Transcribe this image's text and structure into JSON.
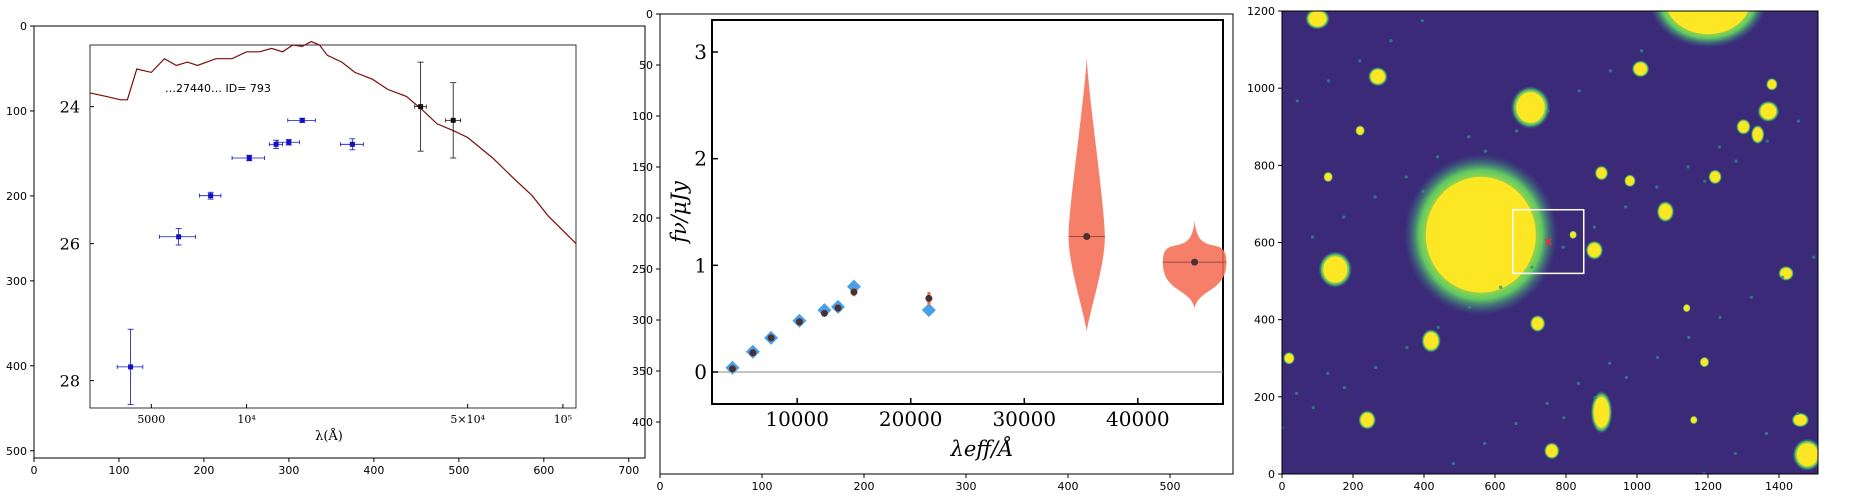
{
  "panels": [
    {
      "type": "image-axes",
      "x_ticks": [
        "0",
        "100",
        "200",
        "300",
        "400",
        "500",
        "600",
        "700"
      ],
      "y_ticks": [
        "0",
        "100",
        "200",
        "300",
        "400",
        "500"
      ],
      "inner_plot": {
        "type": "scatter",
        "xlabel": "λ(Å)",
        "x_ticks": [
          "5000",
          "10⁴",
          "5×10⁴",
          "10⁵"
        ],
        "y_ticks": [
          "24",
          "26",
          "28"
        ],
        "annotation": "…27440… ID= 793"
      }
    },
    {
      "type": "image-axes",
      "x_ticks": [
        "0",
        "100",
        "200",
        "300",
        "400",
        "500"
      ],
      "y_ticks": [
        "0",
        "50",
        "100",
        "150",
        "200",
        "250",
        "300",
        "350",
        "400"
      ],
      "inner_plot": {
        "type": "scatter",
        "xlabel": "λeff/Å",
        "ylabel": "fν/μJy",
        "x_ticks": [
          "10000",
          "20000",
          "30000",
          "40000"
        ],
        "y_ticks": [
          "0",
          "1",
          "2",
          "3"
        ]
      }
    },
    {
      "type": "image-axes",
      "x_ticks": [
        "0",
        "200",
        "400",
        "600",
        "800",
        "1000",
        "1200",
        "1400"
      ],
      "y_ticks": [
        "0",
        "200",
        "400",
        "600",
        "800",
        "1000",
        "1200"
      ]
    }
  ],
  "chart_data": [
    {
      "type": "scatter",
      "xlabel": "λ(Å)",
      "ylabel": "",
      "x_scale": "log",
      "y_inverted": true,
      "xlim": [
        3200,
        110000
      ],
      "ylim": [
        28.4,
        23.1
      ],
      "series": [
        {
          "color": "#1010c8",
          "points": [
            {
              "x": 4300,
              "y": 27.8,
              "xerr": [
                400,
                400
              ],
              "yerr": 0.55
            },
            {
              "x": 6100,
              "y": 25.9,
              "xerr": [
                800,
                800
              ],
              "yerr": 0.12
            },
            {
              "x": 7700,
              "y": 25.3,
              "xerr": [
                600,
                600
              ],
              "yerr": 0.05
            },
            {
              "x": 10200,
              "y": 24.75,
              "xerr": [
                1200,
                1200
              ],
              "yerr": 0.04
            },
            {
              "x": 12400,
              "y": 24.55,
              "xerr": [
                600,
                600
              ],
              "yerr": 0.06
            },
            {
              "x": 13600,
              "y": 24.52,
              "xerr": [
                1100,
                1100
              ],
              "yerr": 0.04
            },
            {
              "x": 15000,
              "y": 24.2,
              "xerr": [
                1500,
                1500
              ],
              "yerr": 0.03
            },
            {
              "x": 21600,
              "y": 24.55,
              "xerr": [
                1800,
                1800
              ],
              "yerr": 0.08
            }
          ]
        },
        {
          "color": "#111111",
          "points": [
            {
              "x": 35500,
              "y": 24.0,
              "xerr": [
                1500,
                1500
              ],
              "yerr": 0.65
            },
            {
              "x": 45000,
              "y": 24.2,
              "xerr": [
                2500,
                2500
              ],
              "yerr": 0.55
            }
          ]
        }
      ],
      "model": {
        "color": "#7a0c0c",
        "points": [
          [
            3200,
            23.8
          ],
          [
            3600,
            23.85
          ],
          [
            4000,
            23.9
          ],
          [
            4200,
            23.9
          ],
          [
            4500,
            23.45
          ],
          [
            5000,
            23.5
          ],
          [
            5500,
            23.3
          ],
          [
            6000,
            23.4
          ],
          [
            6500,
            23.35
          ],
          [
            7000,
            23.4
          ],
          [
            8000,
            23.3
          ],
          [
            9000,
            23.3
          ],
          [
            10000,
            23.2
          ],
          [
            11000,
            23.2
          ],
          [
            12000,
            23.15
          ],
          [
            13000,
            23.2
          ],
          [
            14000,
            23.1
          ],
          [
            15000,
            23.12
          ],
          [
            16000,
            23.05
          ],
          [
            17000,
            23.1
          ],
          [
            18000,
            23.25
          ],
          [
            20000,
            23.35
          ],
          [
            22000,
            23.5
          ],
          [
            25000,
            23.6
          ],
          [
            28000,
            23.75
          ],
          [
            32000,
            23.85
          ],
          [
            36000,
            24.05
          ],
          [
            40000,
            24.25
          ],
          [
            45000,
            24.35
          ],
          [
            50000,
            24.45
          ],
          [
            60000,
            24.75
          ],
          [
            70000,
            25.05
          ],
          [
            80000,
            25.3
          ],
          [
            90000,
            25.6
          ],
          [
            110000,
            26.0
          ]
        ]
      }
    },
    {
      "type": "scatter",
      "xlabel": "λeff/Å",
      "ylabel": "fν/μJy",
      "xlim": [
        2500,
        47500
      ],
      "ylim": [
        -0.3,
        3.3
      ],
      "series": [
        {
          "marker": "diamond",
          "color": "#4a9fe8",
          "points": [
            {
              "x": 4300,
              "y": 0.04
            },
            {
              "x": 6100,
              "y": 0.19
            },
            {
              "x": 7700,
              "y": 0.32
            },
            {
              "x": 10200,
              "y": 0.48
            },
            {
              "x": 12400,
              "y": 0.58
            },
            {
              "x": 13600,
              "y": 0.61
            },
            {
              "x": 15000,
              "y": 0.8
            },
            {
              "x": 21600,
              "y": 0.58
            }
          ]
        },
        {
          "marker": "circle",
          "color": "#4a3030",
          "points": [
            {
              "x": 4300,
              "y": 0.03,
              "err": 0.01
            },
            {
              "x": 6100,
              "y": 0.18,
              "err": 0.01
            },
            {
              "x": 7700,
              "y": 0.32,
              "err": 0.01
            },
            {
              "x": 10200,
              "y": 0.47,
              "err": 0.01
            },
            {
              "x": 12400,
              "y": 0.55,
              "err": 0.02
            },
            {
              "x": 13600,
              "y": 0.6,
              "err": 0.02
            },
            {
              "x": 15000,
              "y": 0.75,
              "err": 0.04
            },
            {
              "x": 21600,
              "y": 0.69,
              "err": 0.06
            }
          ]
        },
        {
          "marker": "violin",
          "color": "#f5715a",
          "points": [
            {
              "x": 35500,
              "y": 1.27,
              "range": [
                0.38,
                2.95
              ],
              "width": 1600
            },
            {
              "x": 45000,
              "y": 1.03,
              "range": [
                0.6,
                1.42
              ],
              "width": 2800
            }
          ]
        }
      ],
      "zero_line": 0
    },
    {
      "type": "heatmap",
      "colormap": "viridis",
      "xlim": [
        0,
        1510
      ],
      "ylim": [
        0,
        1200
      ],
      "ylim_orientation": "bottom-up",
      "box": {
        "x0": 650,
        "x1": 850,
        "y0": 520,
        "y1": 685,
        "color": "#ffffff"
      },
      "target": {
        "x": 750,
        "y": 602,
        "color": "#ff2a2a",
        "marker": "x"
      }
    }
  ]
}
